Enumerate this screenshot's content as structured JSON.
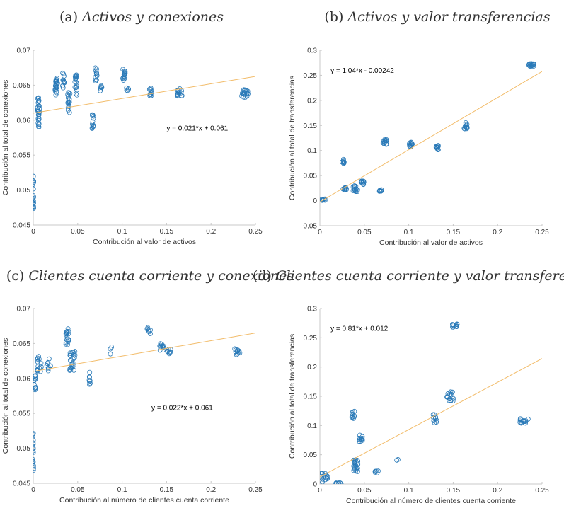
{
  "colors": {
    "points": "#2a7ab8",
    "fit": "#f2bc6a",
    "axis": "#c8c8c8",
    "text": "#333333"
  },
  "chart_data": [
    {
      "type": "scatter",
      "title_prefix": "(a) ",
      "title": "Activos y conexiones",
      "xlabel": "Contribución al valor de activos",
      "ylabel": "Contribución al total de conexiones",
      "xlim": [
        0,
        0.25
      ],
      "ylim": [
        0.045,
        0.07
      ],
      "xticks": [
        "0",
        "0.05",
        "0.1",
        "0.15",
        "0.2",
        "0.25"
      ],
      "yticks": [
        "0.045",
        "0.05",
        "0.055",
        "0.06",
        "0.065",
        "0.07"
      ],
      "equation": "y = 0.021*x + 0.061",
      "equation_pos": [
        0.15,
        0.0585
      ],
      "fit": {
        "slope": 0.021,
        "intercept": 0.061
      },
      "clusters": [
        {
          "x": 0.0,
          "y": 0.0492,
          "dx": 0.0006,
          "dy": 0.0028,
          "n": 22
        },
        {
          "x": 0.006,
          "y": 0.0612,
          "dx": 0.0012,
          "dy": 0.0022,
          "n": 30
        },
        {
          "x": 0.026,
          "y": 0.0648,
          "dx": 0.0015,
          "dy": 0.0012,
          "n": 22
        },
        {
          "x": 0.034,
          "y": 0.0658,
          "dx": 0.0012,
          "dy": 0.0012,
          "n": 12
        },
        {
          "x": 0.04,
          "y": 0.0625,
          "dx": 0.0015,
          "dy": 0.0015,
          "n": 18
        },
        {
          "x": 0.048,
          "y": 0.065,
          "dx": 0.0012,
          "dy": 0.0015,
          "n": 18
        },
        {
          "x": 0.067,
          "y": 0.0598,
          "dx": 0.0012,
          "dy": 0.0012,
          "n": 12
        },
        {
          "x": 0.071,
          "y": 0.0665,
          "dx": 0.0012,
          "dy": 0.001,
          "n": 12
        },
        {
          "x": 0.076,
          "y": 0.0645,
          "dx": 0.0012,
          "dy": 0.0005,
          "n": 6
        },
        {
          "x": 0.102,
          "y": 0.0665,
          "dx": 0.0015,
          "dy": 0.0008,
          "n": 14
        },
        {
          "x": 0.106,
          "y": 0.0645,
          "dx": 0.0012,
          "dy": 0.0003,
          "n": 5
        },
        {
          "x": 0.132,
          "y": 0.064,
          "dx": 0.0012,
          "dy": 0.0006,
          "n": 12
        },
        {
          "x": 0.165,
          "y": 0.064,
          "dx": 0.003,
          "dy": 0.0006,
          "n": 16
        },
        {
          "x": 0.238,
          "y": 0.0638,
          "dx": 0.004,
          "dy": 0.0006,
          "n": 20
        }
      ]
    },
    {
      "type": "scatter",
      "title_prefix": "(b) ",
      "title": "Activos y valor transferencias",
      "xlabel": "Contribución al valor de activos",
      "ylabel": "Contribución al total de transferencias",
      "xlim": [
        0,
        0.25
      ],
      "ylim": [
        -0.05,
        0.3
      ],
      "xticks": [
        "0",
        "0.05",
        "0.1",
        "0.15",
        "0.2",
        "0.25"
      ],
      "yticks": [
        "-0.05",
        "0",
        "0.05",
        "0.1",
        "0.15",
        "0.2",
        "0.25",
        "0.3"
      ],
      "equation": "y = 1.04*x - 0.00242",
      "equation_pos": [
        0.012,
        0.255
      ],
      "fit": {
        "slope": 1.04,
        "intercept": -0.00242
      },
      "clusters": [
        {
          "x": 0.004,
          "y": 0.002,
          "dx": 0.002,
          "dy": 0.0015,
          "n": 8
        },
        {
          "x": 0.026,
          "y": 0.078,
          "dx": 0.0015,
          "dy": 0.005,
          "n": 10
        },
        {
          "x": 0.028,
          "y": 0.024,
          "dx": 0.002,
          "dy": 0.003,
          "n": 12
        },
        {
          "x": 0.04,
          "y": 0.024,
          "dx": 0.003,
          "dy": 0.006,
          "n": 16
        },
        {
          "x": 0.048,
          "y": 0.036,
          "dx": 0.002,
          "dy": 0.004,
          "n": 12
        },
        {
          "x": 0.068,
          "y": 0.02,
          "dx": 0.0015,
          "dy": 0.002,
          "n": 8
        },
        {
          "x": 0.073,
          "y": 0.117,
          "dx": 0.002,
          "dy": 0.005,
          "n": 14
        },
        {
          "x": 0.102,
          "y": 0.111,
          "dx": 0.002,
          "dy": 0.006,
          "n": 14
        },
        {
          "x": 0.132,
          "y": 0.106,
          "dx": 0.0015,
          "dy": 0.005,
          "n": 12
        },
        {
          "x": 0.164,
          "y": 0.149,
          "dx": 0.002,
          "dy": 0.007,
          "n": 16
        },
        {
          "x": 0.238,
          "y": 0.271,
          "dx": 0.003,
          "dy": 0.003,
          "n": 16
        }
      ]
    },
    {
      "type": "scatter",
      "title_prefix": "(c) ",
      "title": "Clientes cuenta corriente y conexiones",
      "xlabel": "Contribución al número de clientes cuenta corriente",
      "ylabel": "Contribución al total de conexiones",
      "xlim": [
        0,
        0.25
      ],
      "ylim": [
        0.045,
        0.07
      ],
      "xticks": [
        "0",
        "0.05",
        "0.1",
        "0.15",
        "0.2",
        "0.25"
      ],
      "yticks": [
        "0.045",
        "0.05",
        "0.055",
        "0.06",
        "0.065",
        "0.07"
      ],
      "equation": "y = 0.022*x + 0.061",
      "equation_pos": [
        0.133,
        0.0555
      ],
      "fit": {
        "slope": 0.022,
        "intercept": 0.061
      },
      "clusters": [
        {
          "x": 0.0,
          "y": 0.0495,
          "dx": 0.0005,
          "dy": 0.003,
          "n": 22
        },
        {
          "x": 0.002,
          "y": 0.0595,
          "dx": 0.001,
          "dy": 0.0012,
          "n": 10
        },
        {
          "x": 0.007,
          "y": 0.0622,
          "dx": 0.0025,
          "dy": 0.0012,
          "n": 14
        },
        {
          "x": 0.017,
          "y": 0.062,
          "dx": 0.0025,
          "dy": 0.001,
          "n": 10
        },
        {
          "x": 0.038,
          "y": 0.066,
          "dx": 0.002,
          "dy": 0.0012,
          "n": 18
        },
        {
          "x": 0.044,
          "y": 0.0625,
          "dx": 0.003,
          "dy": 0.0015,
          "n": 24
        },
        {
          "x": 0.063,
          "y": 0.06,
          "dx": 0.0012,
          "dy": 0.001,
          "n": 8
        },
        {
          "x": 0.087,
          "y": 0.064,
          "dx": 0.0012,
          "dy": 0.0008,
          "n": 3
        },
        {
          "x": 0.13,
          "y": 0.0668,
          "dx": 0.002,
          "dy": 0.0005,
          "n": 8
        },
        {
          "x": 0.145,
          "y": 0.0645,
          "dx": 0.003,
          "dy": 0.0005,
          "n": 12
        },
        {
          "x": 0.153,
          "y": 0.0638,
          "dx": 0.002,
          "dy": 0.0005,
          "n": 8
        },
        {
          "x": 0.229,
          "y": 0.0638,
          "dx": 0.004,
          "dy": 0.0005,
          "n": 12
        }
      ]
    },
    {
      "type": "scatter",
      "title_prefix": "(d) ",
      "title": "Clientes cuenta corriente y valor transferencias",
      "xlabel": "Contribución al número de clientes cuenta corriente",
      "ylabel": "Contribución al total de transferencias",
      "xlim": [
        0,
        0.25
      ],
      "ylim": [
        0,
        0.3
      ],
      "xticks": [
        "0",
        "0.05",
        "0.1",
        "0.15",
        "0.2",
        "0.25"
      ],
      "yticks": [
        "0",
        "0.05",
        "0.1",
        "0.15",
        "0.2",
        "0.25",
        "0.3"
      ],
      "equation": "y = 0.81*x + 0.012",
      "equation_pos": [
        0.012,
        0.262
      ],
      "fit": {
        "slope": 0.81,
        "intercept": 0.012
      },
      "clusters": [
        {
          "x": 0.005,
          "y": 0.012,
          "dx": 0.004,
          "dy": 0.009,
          "n": 16
        },
        {
          "x": 0.022,
          "y": 0.001,
          "dx": 0.004,
          "dy": 0.001,
          "n": 8
        },
        {
          "x": 0.037,
          "y": 0.118,
          "dx": 0.002,
          "dy": 0.007,
          "n": 10
        },
        {
          "x": 0.04,
          "y": 0.032,
          "dx": 0.003,
          "dy": 0.012,
          "n": 24
        },
        {
          "x": 0.046,
          "y": 0.078,
          "dx": 0.002,
          "dy": 0.006,
          "n": 12
        },
        {
          "x": 0.064,
          "y": 0.021,
          "dx": 0.002,
          "dy": 0.002,
          "n": 6
        },
        {
          "x": 0.087,
          "y": 0.041,
          "dx": 0.001,
          "dy": 0.002,
          "n": 2
        },
        {
          "x": 0.13,
          "y": 0.112,
          "dx": 0.003,
          "dy": 0.008,
          "n": 10
        },
        {
          "x": 0.146,
          "y": 0.15,
          "dx": 0.005,
          "dy": 0.008,
          "n": 16
        },
        {
          "x": 0.152,
          "y": 0.271,
          "dx": 0.003,
          "dy": 0.003,
          "n": 14
        },
        {
          "x": 0.23,
          "y": 0.108,
          "dx": 0.005,
          "dy": 0.004,
          "n": 14
        }
      ]
    }
  ]
}
